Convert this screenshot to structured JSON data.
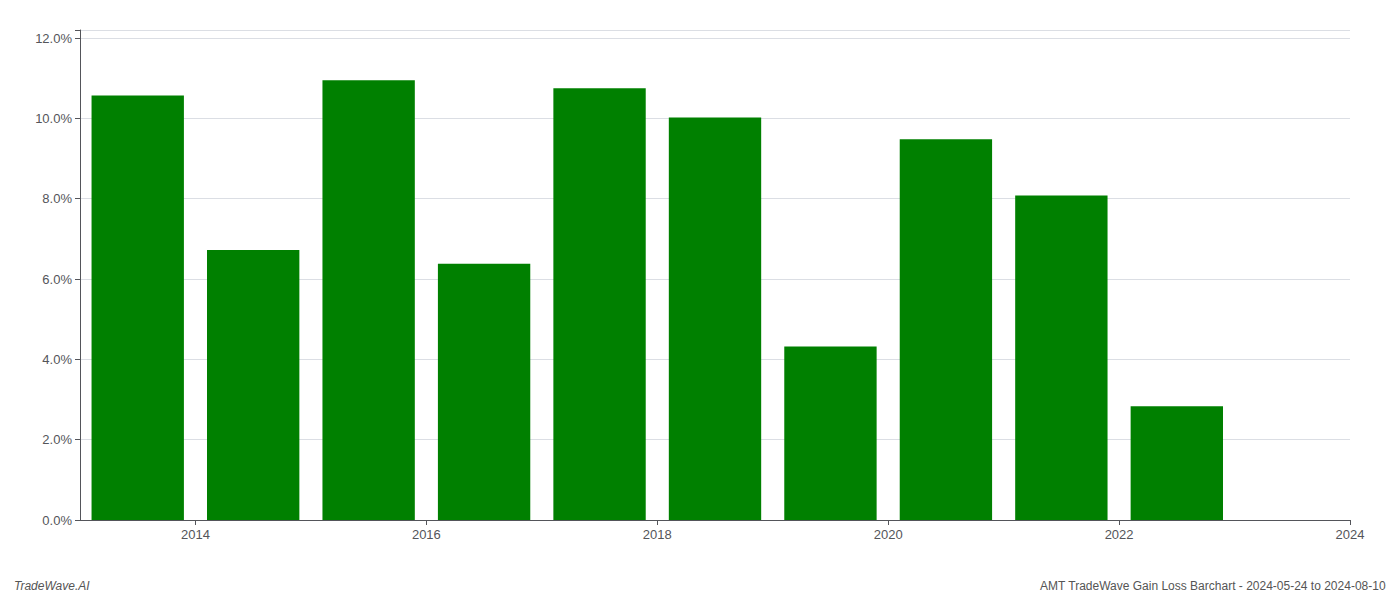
{
  "chart_data": {
    "type": "bar",
    "x": [
      2014,
      2015,
      2016,
      2017,
      2018,
      2019,
      2020,
      2021,
      2022,
      2023
    ],
    "values": [
      0.1057,
      0.0672,
      0.1095,
      0.0638,
      0.1075,
      0.1002,
      0.0432,
      0.0948,
      0.0808,
      0.0283
    ],
    "color": "#008000",
    "xlim": [
      2013.5,
      2024.5
    ],
    "xticks": [
      {
        "value": 2014.5,
        "label": "2014"
      },
      {
        "value": 2016.5,
        "label": "2016"
      },
      {
        "value": 2018.5,
        "label": "2018"
      },
      {
        "value": 2020.5,
        "label": "2020"
      },
      {
        "value": 2022.5,
        "label": "2022"
      },
      {
        "value": 2024.5,
        "label": "2024"
      }
    ],
    "ylim": [
      0.0,
      0.122
    ],
    "yticks": [
      {
        "value": 0.0,
        "label": "0.0%"
      },
      {
        "value": 0.02,
        "label": "2.0%"
      },
      {
        "value": 0.04,
        "label": "4.0%"
      },
      {
        "value": 0.06,
        "label": "6.0%"
      },
      {
        "value": 0.08,
        "label": "8.0%"
      },
      {
        "value": 0.1,
        "label": "10.0%"
      },
      {
        "value": 0.12,
        "label": "12.0%"
      }
    ],
    "grid": true,
    "annotations": [
      "TradeWave.AI",
      "AMT TradeWave Gain Loss Barchart - 2024-05-24 to 2024-08-10"
    ]
  }
}
